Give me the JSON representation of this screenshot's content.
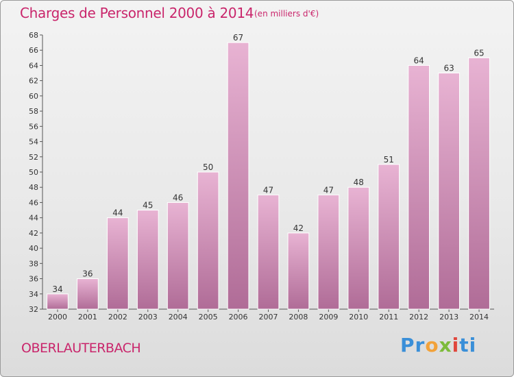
{
  "header": {
    "title": "Charges de Personnel 2000 à 2014",
    "unit": "(en milliers d'€)"
  },
  "footer": {
    "city": "OBERLAUTERBACH",
    "logo": [
      "Pr",
      "o",
      "x",
      "i",
      "ti"
    ]
  },
  "colors": {
    "accent": "#c9256b",
    "bar_light": "#e8b3d3",
    "bar_dark": "#b06c97"
  },
  "chart_data": {
    "type": "bar",
    "title": "Charges de Personnel 2000 à 2014",
    "categories": [
      "2000",
      "2001",
      "2002",
      "2003",
      "2004",
      "2005",
      "2006",
      "2007",
      "2008",
      "2009",
      "2010",
      "2011",
      "2012",
      "2013",
      "2014"
    ],
    "values": [
      34,
      36,
      44,
      45,
      46,
      50,
      67,
      47,
      42,
      47,
      48,
      51,
      64,
      63,
      65
    ],
    "ylim": [
      32,
      68
    ],
    "ytick_step": 2,
    "grid": false,
    "legend": "none"
  }
}
